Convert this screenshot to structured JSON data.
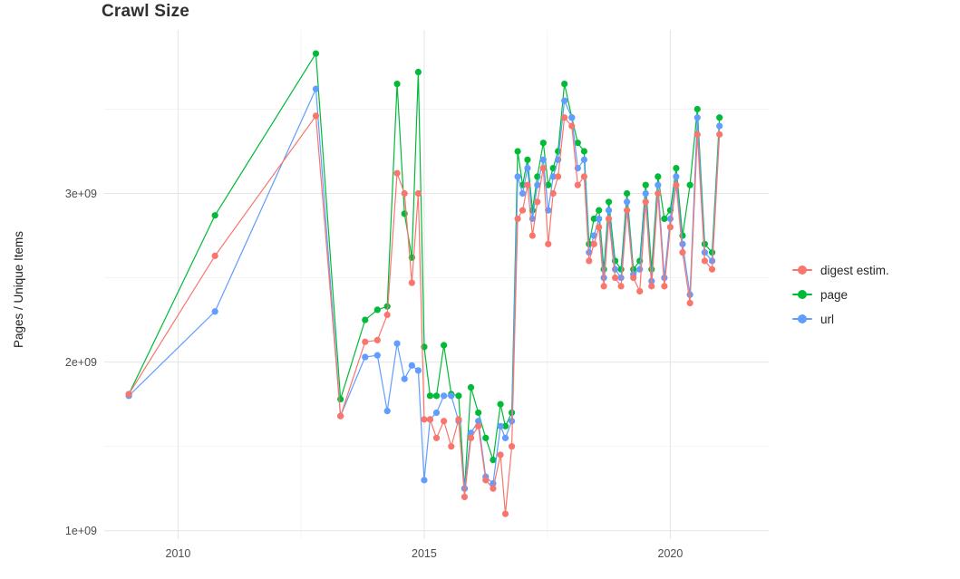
{
  "title": "Crawl Size",
  "colors": {
    "background": "#FFFFFF",
    "grid_major": "#E5E5E5",
    "grid_minor": "#F3F3F3",
    "axis_text": "#4D4D4D",
    "title_text": "#303030",
    "legend_text": "#262626",
    "digest": "#F8766D",
    "page": "#00BA38",
    "url": "#619CFF"
  },
  "chart_data": {
    "type": "line",
    "title": "Crawl Size",
    "xlabel": "",
    "ylabel": "Pages / Unique Items",
    "value_units": "pages/items in billions (1e9)",
    "xlim": [
      2008.5,
      2022.0
    ],
    "ylim": [
      0.95,
      3.97
    ],
    "grid": true,
    "legend_position": "right",
    "x_ticks": [
      {
        "v": 2010,
        "label": "2010"
      },
      {
        "v": 2015,
        "label": "2015"
      },
      {
        "v": 2020,
        "label": "2020"
      }
    ],
    "x_minor_ticks": [
      2012.5,
      2017.5
    ],
    "y_ticks": [
      {
        "v": 1.0,
        "label": "1e+09"
      },
      {
        "v": 2.0,
        "label": "2e+09"
      },
      {
        "v": 3.0,
        "label": "3e+09"
      }
    ],
    "y_minor_ticks": [
      1.5,
      2.5,
      3.5
    ],
    "x": [
      2009.0,
      2010.75,
      2012.8,
      2013.3,
      2013.8,
      2014.05,
      2014.25,
      2014.45,
      2014.6,
      2014.75,
      2014.88,
      2015.0,
      2015.12,
      2015.25,
      2015.4,
      2015.55,
      2015.7,
      2015.82,
      2015.95,
      2016.1,
      2016.25,
      2016.4,
      2016.55,
      2016.65,
      2016.78,
      2016.9,
      2017.0,
      2017.1,
      2017.2,
      2017.3,
      2017.42,
      2017.52,
      2017.62,
      2017.72,
      2017.85,
      2018.0,
      2018.12,
      2018.25,
      2018.35,
      2018.45,
      2018.55,
      2018.65,
      2018.75,
      2018.88,
      2019.0,
      2019.12,
      2019.25,
      2019.38,
      2019.5,
      2019.62,
      2019.75,
      2019.88,
      2020.0,
      2020.12,
      2020.25,
      2020.4,
      2020.55,
      2020.7,
      2020.85,
      2021.0
    ],
    "series": [
      {
        "name": "digest estim.",
        "color": "#F8766D",
        "values": [
          1.81,
          2.63,
          3.46,
          1.68,
          2.12,
          2.13,
          2.28,
          3.12,
          3.0,
          2.47,
          3.0,
          1.66,
          1.66,
          1.55,
          1.65,
          1.5,
          1.66,
          1.2,
          1.55,
          1.62,
          1.3,
          1.25,
          1.45,
          1.1,
          1.5,
          2.85,
          2.9,
          3.05,
          2.75,
          2.95,
          3.15,
          2.7,
          3.0,
          3.1,
          3.45,
          3.4,
          3.05,
          3.1,
          2.6,
          2.7,
          2.8,
          2.45,
          2.85,
          2.5,
          2.45,
          2.9,
          2.5,
          2.42,
          2.95,
          2.45,
          3.0,
          2.45,
          2.8,
          3.05,
          2.65,
          2.35,
          3.35,
          2.6,
          2.55,
          3.35
        ]
      },
      {
        "name": "page",
        "color": "#00BA38",
        "values": [
          1.81,
          2.87,
          3.83,
          1.78,
          2.25,
          2.31,
          2.33,
          3.65,
          2.88,
          2.62,
          3.72,
          2.09,
          1.8,
          1.8,
          2.1,
          1.81,
          1.8,
          1.25,
          1.85,
          1.7,
          1.55,
          1.42,
          1.75,
          1.62,
          1.7,
          3.25,
          3.05,
          3.2,
          2.9,
          3.1,
          3.3,
          3.05,
          3.15,
          3.25,
          3.65,
          3.45,
          3.3,
          3.25,
          2.7,
          2.85,
          2.9,
          2.55,
          2.95,
          2.6,
          2.55,
          3.0,
          2.55,
          2.6,
          3.05,
          2.55,
          3.1,
          2.85,
          2.9,
          3.15,
          2.75,
          3.05,
          3.5,
          2.7,
          2.65,
          3.45
        ]
      },
      {
        "name": "url",
        "color": "#619CFF",
        "values": [
          1.8,
          2.3,
          3.62,
          1.68,
          2.03,
          2.04,
          1.71,
          2.11,
          1.9,
          1.98,
          1.95,
          1.3,
          1.66,
          1.7,
          1.8,
          1.8,
          1.65,
          1.25,
          1.58,
          1.65,
          1.32,
          1.28,
          1.62,
          1.55,
          1.65,
          3.1,
          3.0,
          3.15,
          2.85,
          3.05,
          3.2,
          2.9,
          3.1,
          3.2,
          3.55,
          3.45,
          3.15,
          3.2,
          2.65,
          2.75,
          2.85,
          2.5,
          2.9,
          2.55,
          2.5,
          2.95,
          2.52,
          2.55,
          3.0,
          2.48,
          3.05,
          2.5,
          2.85,
          3.1,
          2.7,
          2.4,
          3.45,
          2.65,
          2.6,
          3.4
        ]
      }
    ]
  }
}
